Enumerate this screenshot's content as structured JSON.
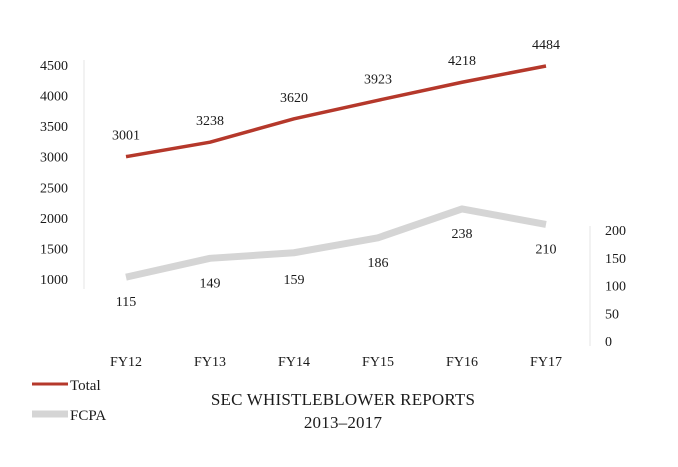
{
  "chart_data": {
    "type": "line",
    "title": "SEC WHISTLEBLOWER REPORTS",
    "subtitle": "2013–2017",
    "categories": [
      "FY12",
      "FY13",
      "FY14",
      "FY15",
      "FY16",
      "FY17"
    ],
    "series": [
      {
        "name": "Total",
        "axis": "left",
        "color": "#b5382b",
        "values": [
          3001,
          3238,
          3620,
          3923,
          4218,
          4484
        ],
        "labels": [
          "3001",
          "3238",
          "3620",
          "3923",
          "4218",
          "4484"
        ]
      },
      {
        "name": "FCPA",
        "axis": "right",
        "color": "#d5d5d5",
        "values": [
          115,
          149,
          159,
          186,
          238,
          210
        ],
        "labels": [
          "115",
          "149",
          "159",
          "186",
          "238",
          "210"
        ]
      }
    ],
    "left_axis": {
      "ylim": [
        1000,
        4500
      ],
      "ticks": [
        1000,
        1500,
        2000,
        2500,
        3000,
        3500,
        4000,
        4500
      ],
      "tick_labels": [
        "1000",
        "1500",
        "2000",
        "2500",
        "3000",
        "3500",
        "4000",
        "4500"
      ]
    },
    "right_axis": {
      "ylim": [
        0,
        200
      ],
      "ticks": [
        0,
        50,
        100,
        150,
        200
      ],
      "tick_labels": [
        "0",
        "50",
        "100",
        "150",
        "200"
      ]
    },
    "grid": false,
    "legend_position": "bottom-left"
  }
}
